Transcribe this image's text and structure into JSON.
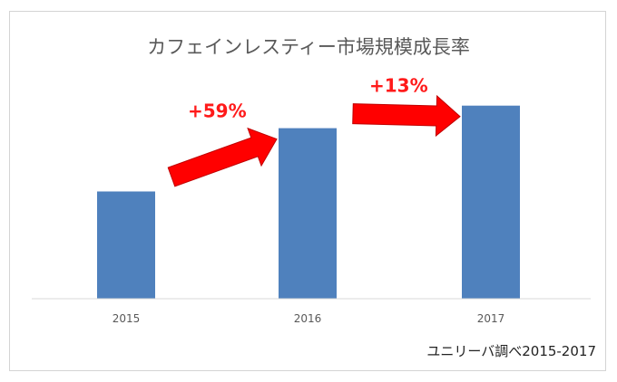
{
  "chart_data": {
    "type": "bar",
    "title": "カフェインレスティー市場規模成長率",
    "categories": [
      "2015",
      "2016",
      "2017"
    ],
    "values": [
      100,
      159,
      180
    ],
    "ylim": [
      0,
      200
    ],
    "grid": false,
    "annotations": [
      {
        "label": "+59%",
        "from": "2015",
        "to": "2016"
      },
      {
        "label": "+13%",
        "from": "2016",
        "to": "2017"
      }
    ],
    "source": "ユニリーバ調べ2015-2017",
    "colors": {
      "bar": "#4f81bd",
      "arrow": "#ff0000",
      "arrow_edge": "#c00000",
      "annotation_text": "#ff1a1a"
    }
  }
}
